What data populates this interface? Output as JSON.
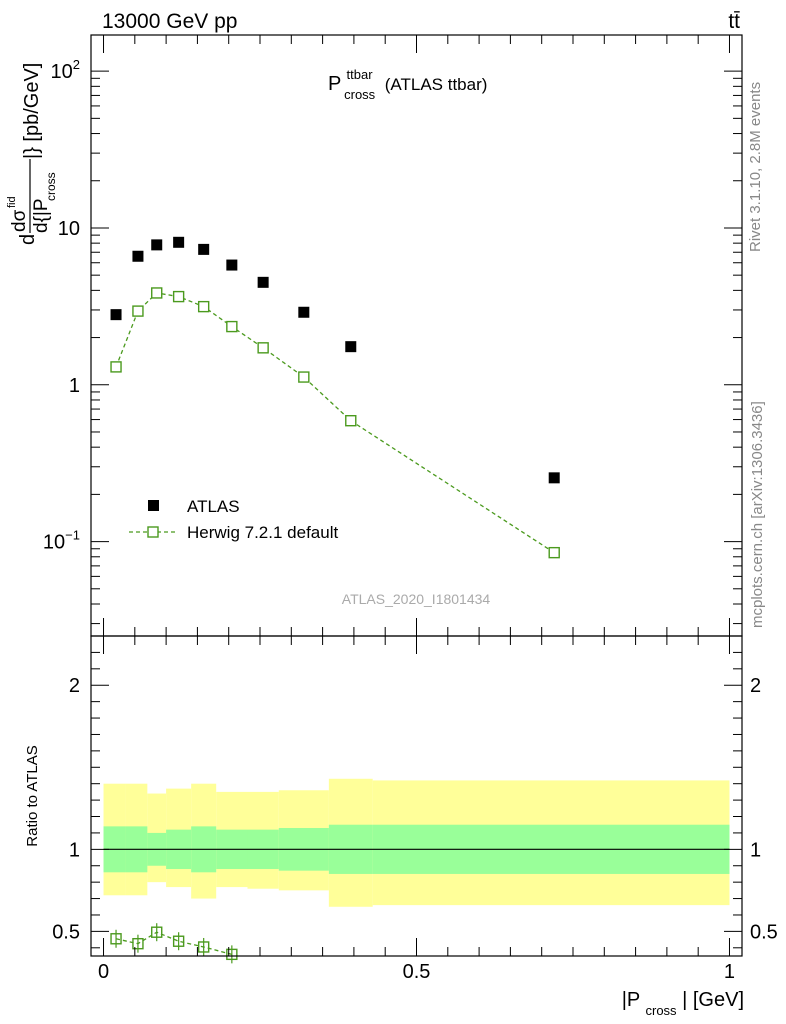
{
  "header": {
    "energy_label": "13000 GeV pp",
    "process_label": "tt̄"
  },
  "side_labels": {
    "rivet_label": "Rivet 3.1.10,  2.8M events",
    "source_label": "mcplots.cern.ch [arXiv:1306.3436]"
  },
  "analysis_id": "ATLAS_2020_I1801434",
  "chart_data": [
    {
      "type": "scatter",
      "panel": "main",
      "yscale": "log",
      "title": {
        "main": "P",
        "superscript": "ttbar",
        "subscript": "cross",
        "suffix": "(ATLAS ttbar)"
      },
      "ylabel": {
        "d": "d",
        "dsigma": "dσ",
        "fid": "fid",
        "denominator": "d{|P",
        "denominator_sub": "cross",
        "closing": "|} [pb/GeV]"
      },
      "xlim": [
        -0.02,
        1.02
      ],
      "ylim": [
        0.025,
        170
      ],
      "y_tick_labels": [
        {
          "value": 0.1,
          "base": "10",
          "exp": "−1"
        },
        {
          "value": 1,
          "base": "1",
          "exp": ""
        },
        {
          "value": 10,
          "base": "10",
          "exp": ""
        },
        {
          "value": 100,
          "base": "10",
          "exp": "2"
        }
      ],
      "legend": {
        "position": "lower-left",
        "entries": [
          {
            "name": "ATLAS",
            "marker": "filled-square",
            "color": "#000000"
          },
          {
            "name": "Herwig 7.2.1 default",
            "marker": "open-square-dashed",
            "color": "#4b9a1e"
          }
        ]
      },
      "series": [
        {
          "name": "ATLAS",
          "color": "#000000",
          "x": [
            0.02,
            0.055,
            0.085,
            0.12,
            0.16,
            0.205,
            0.255,
            0.32,
            0.395,
            0.72
          ],
          "y": [
            2.8,
            6.6,
            7.8,
            8.1,
            7.3,
            5.8,
            4.5,
            2.9,
            1.75,
            0.255
          ]
        },
        {
          "name": "Herwig 7.2.1 default",
          "color": "#4b9a1e",
          "x": [
            0.02,
            0.055,
            0.085,
            0.12,
            0.16,
            0.205,
            0.255,
            0.32,
            0.395,
            0.72
          ],
          "y": [
            1.3,
            2.95,
            3.85,
            3.65,
            3.15,
            2.35,
            1.72,
            1.12,
            0.59,
            0.085
          ]
        }
      ]
    },
    {
      "type": "line",
      "panel": "ratio",
      "ylabel": "Ratio to ATLAS",
      "xlabel": {
        "prefix": "|P",
        "sub": "cross",
        "suffix": "| [GeV]"
      },
      "xlim": [
        -0.02,
        1.02
      ],
      "ylim": [
        0.35,
        2.3
      ],
      "x_ticks": [
        0,
        0.5,
        1
      ],
      "x_tick_labels": [
        "0",
        "0.5",
        "1"
      ],
      "y_ticks": [
        0.5,
        1,
        2
      ],
      "y_tick_labels": [
        "0.5",
        "1",
        "2"
      ],
      "bin_edges": [
        0,
        0.035,
        0.07,
        0.1,
        0.14,
        0.18,
        0.23,
        0.28,
        0.36,
        0.43,
        1.0
      ],
      "band_inner_low": [
        0.86,
        0.86,
        0.9,
        0.88,
        0.86,
        0.88,
        0.88,
        0.87,
        0.85,
        0.85
      ],
      "band_inner_high": [
        1.14,
        1.14,
        1.1,
        1.12,
        1.14,
        1.12,
        1.12,
        1.13,
        1.15,
        1.15
      ],
      "band_outer_low": [
        0.72,
        0.72,
        0.8,
        0.77,
        0.7,
        0.77,
        0.76,
        0.75,
        0.65,
        0.66
      ],
      "band_outer_high": [
        1.4,
        1.4,
        1.34,
        1.37,
        1.4,
        1.35,
        1.35,
        1.36,
        1.43,
        1.42
      ],
      "band_inner_color": "#99ff99",
      "band_outer_color": "#ffff99",
      "series": [
        {
          "name": "Herwig 7.2.1 default",
          "color": "#4b9a1e",
          "x": [
            0.02,
            0.055,
            0.085,
            0.12,
            0.16,
            0.205
          ],
          "y": [
            0.455,
            0.425,
            0.495,
            0.44,
            0.405,
            0.36
          ]
        }
      ]
    }
  ]
}
